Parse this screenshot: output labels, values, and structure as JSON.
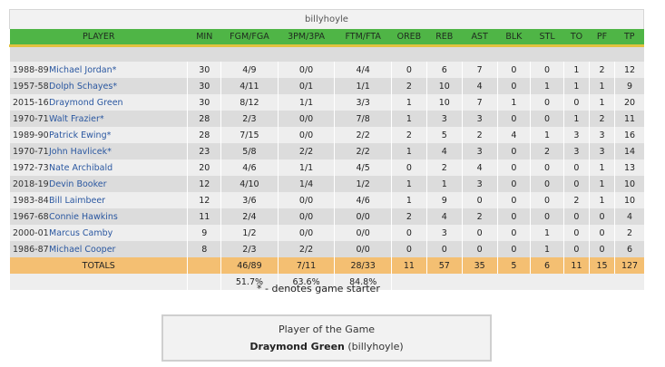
{
  "team": {
    "name": "billyhoyle"
  },
  "columns": [
    "PLAYER",
    "MIN",
    "FGM/FGA",
    "3PM/3PA",
    "FTM/FTA",
    "OREB",
    "REB",
    "AST",
    "BLK",
    "STL",
    "TO",
    "PF",
    "TP"
  ],
  "rows": [
    {
      "season": "1988-89",
      "player": "Michael Jordan*",
      "min": "30",
      "fg": "4/9",
      "three": "0/0",
      "ft": "4/4",
      "oreb": "0",
      "reb": "6",
      "ast": "7",
      "blk": "0",
      "stl": "0",
      "to": "1",
      "pf": "2",
      "tp": "12"
    },
    {
      "season": "1957-58",
      "player": "Dolph Schayes*",
      "min": "30",
      "fg": "4/11",
      "three": "0/1",
      "ft": "1/1",
      "oreb": "2",
      "reb": "10",
      "ast": "4",
      "blk": "0",
      "stl": "1",
      "to": "1",
      "pf": "1",
      "tp": "9"
    },
    {
      "season": "2015-16",
      "player": "Draymond Green",
      "min": "30",
      "fg": "8/12",
      "three": "1/1",
      "ft": "3/3",
      "oreb": "1",
      "reb": "10",
      "ast": "7",
      "blk": "1",
      "stl": "0",
      "to": "0",
      "pf": "1",
      "tp": "20"
    },
    {
      "season": "1970-71",
      "player": "Walt Frazier*",
      "min": "28",
      "fg": "2/3",
      "three": "0/0",
      "ft": "7/8",
      "oreb": "1",
      "reb": "3",
      "ast": "3",
      "blk": "0",
      "stl": "0",
      "to": "1",
      "pf": "2",
      "tp": "11"
    },
    {
      "season": "1989-90",
      "player": "Patrick Ewing*",
      "min": "28",
      "fg": "7/15",
      "three": "0/0",
      "ft": "2/2",
      "oreb": "2",
      "reb": "5",
      "ast": "2",
      "blk": "4",
      "stl": "1",
      "to": "3",
      "pf": "3",
      "tp": "16"
    },
    {
      "season": "1970-71",
      "player": "John Havlicek*",
      "min": "23",
      "fg": "5/8",
      "three": "2/2",
      "ft": "2/2",
      "oreb": "1",
      "reb": "4",
      "ast": "3",
      "blk": "0",
      "stl": "2",
      "to": "3",
      "pf": "3",
      "tp": "14"
    },
    {
      "season": "1972-73",
      "player": "Nate Archibald",
      "min": "20",
      "fg": "4/6",
      "three": "1/1",
      "ft": "4/5",
      "oreb": "0",
      "reb": "2",
      "ast": "4",
      "blk": "0",
      "stl": "0",
      "to": "0",
      "pf": "1",
      "tp": "13"
    },
    {
      "season": "2018-19",
      "player": "Devin Booker",
      "min": "12",
      "fg": "4/10",
      "three": "1/4",
      "ft": "1/2",
      "oreb": "1",
      "reb": "1",
      "ast": "3",
      "blk": "0",
      "stl": "0",
      "to": "0",
      "pf": "1",
      "tp": "10"
    },
    {
      "season": "1983-84",
      "player": "Bill Laimbeer",
      "min": "12",
      "fg": "3/6",
      "three": "0/0",
      "ft": "4/6",
      "oreb": "1",
      "reb": "9",
      "ast": "0",
      "blk": "0",
      "stl": "0",
      "to": "2",
      "pf": "1",
      "tp": "10"
    },
    {
      "season": "1967-68",
      "player": "Connie Hawkins",
      "min": "11",
      "fg": "2/4",
      "three": "0/0",
      "ft": "0/0",
      "oreb": "2",
      "reb": "4",
      "ast": "2",
      "blk": "0",
      "stl": "0",
      "to": "0",
      "pf": "0",
      "tp": "4"
    },
    {
      "season": "2000-01",
      "player": "Marcus Camby",
      "min": "9",
      "fg": "1/2",
      "three": "0/0",
      "ft": "0/0",
      "oreb": "0",
      "reb": "3",
      "ast": "0",
      "blk": "0",
      "stl": "1",
      "to": "0",
      "pf": "0",
      "tp": "2"
    },
    {
      "season": "1986-87",
      "player": "Michael Cooper",
      "min": "8",
      "fg": "2/3",
      "three": "2/2",
      "ft": "0/0",
      "oreb": "0",
      "reb": "0",
      "ast": "0",
      "blk": "0",
      "stl": "1",
      "to": "0",
      "pf": "0",
      "tp": "6"
    }
  ],
  "totals": {
    "label": "TOTALS",
    "min": "",
    "fg": "46/89",
    "three": "7/11",
    "ft": "28/33",
    "oreb": "11",
    "reb": "57",
    "ast": "35",
    "blk": "5",
    "stl": "6",
    "to": "11",
    "pf": "15",
    "tp": "127"
  },
  "percentages": {
    "fg": "51.7%",
    "three": "63.6%",
    "ft": "84.8%"
  },
  "starter_note": "* - denotes game starter",
  "player_of_game": {
    "title": "Player of the Game",
    "name": "Draymond Green",
    "team": "(billyhoyle)"
  },
  "colors": {
    "header_green": "#4fb546",
    "totals_orange": "#f4bf72",
    "link_blue": "#2a57a0"
  }
}
